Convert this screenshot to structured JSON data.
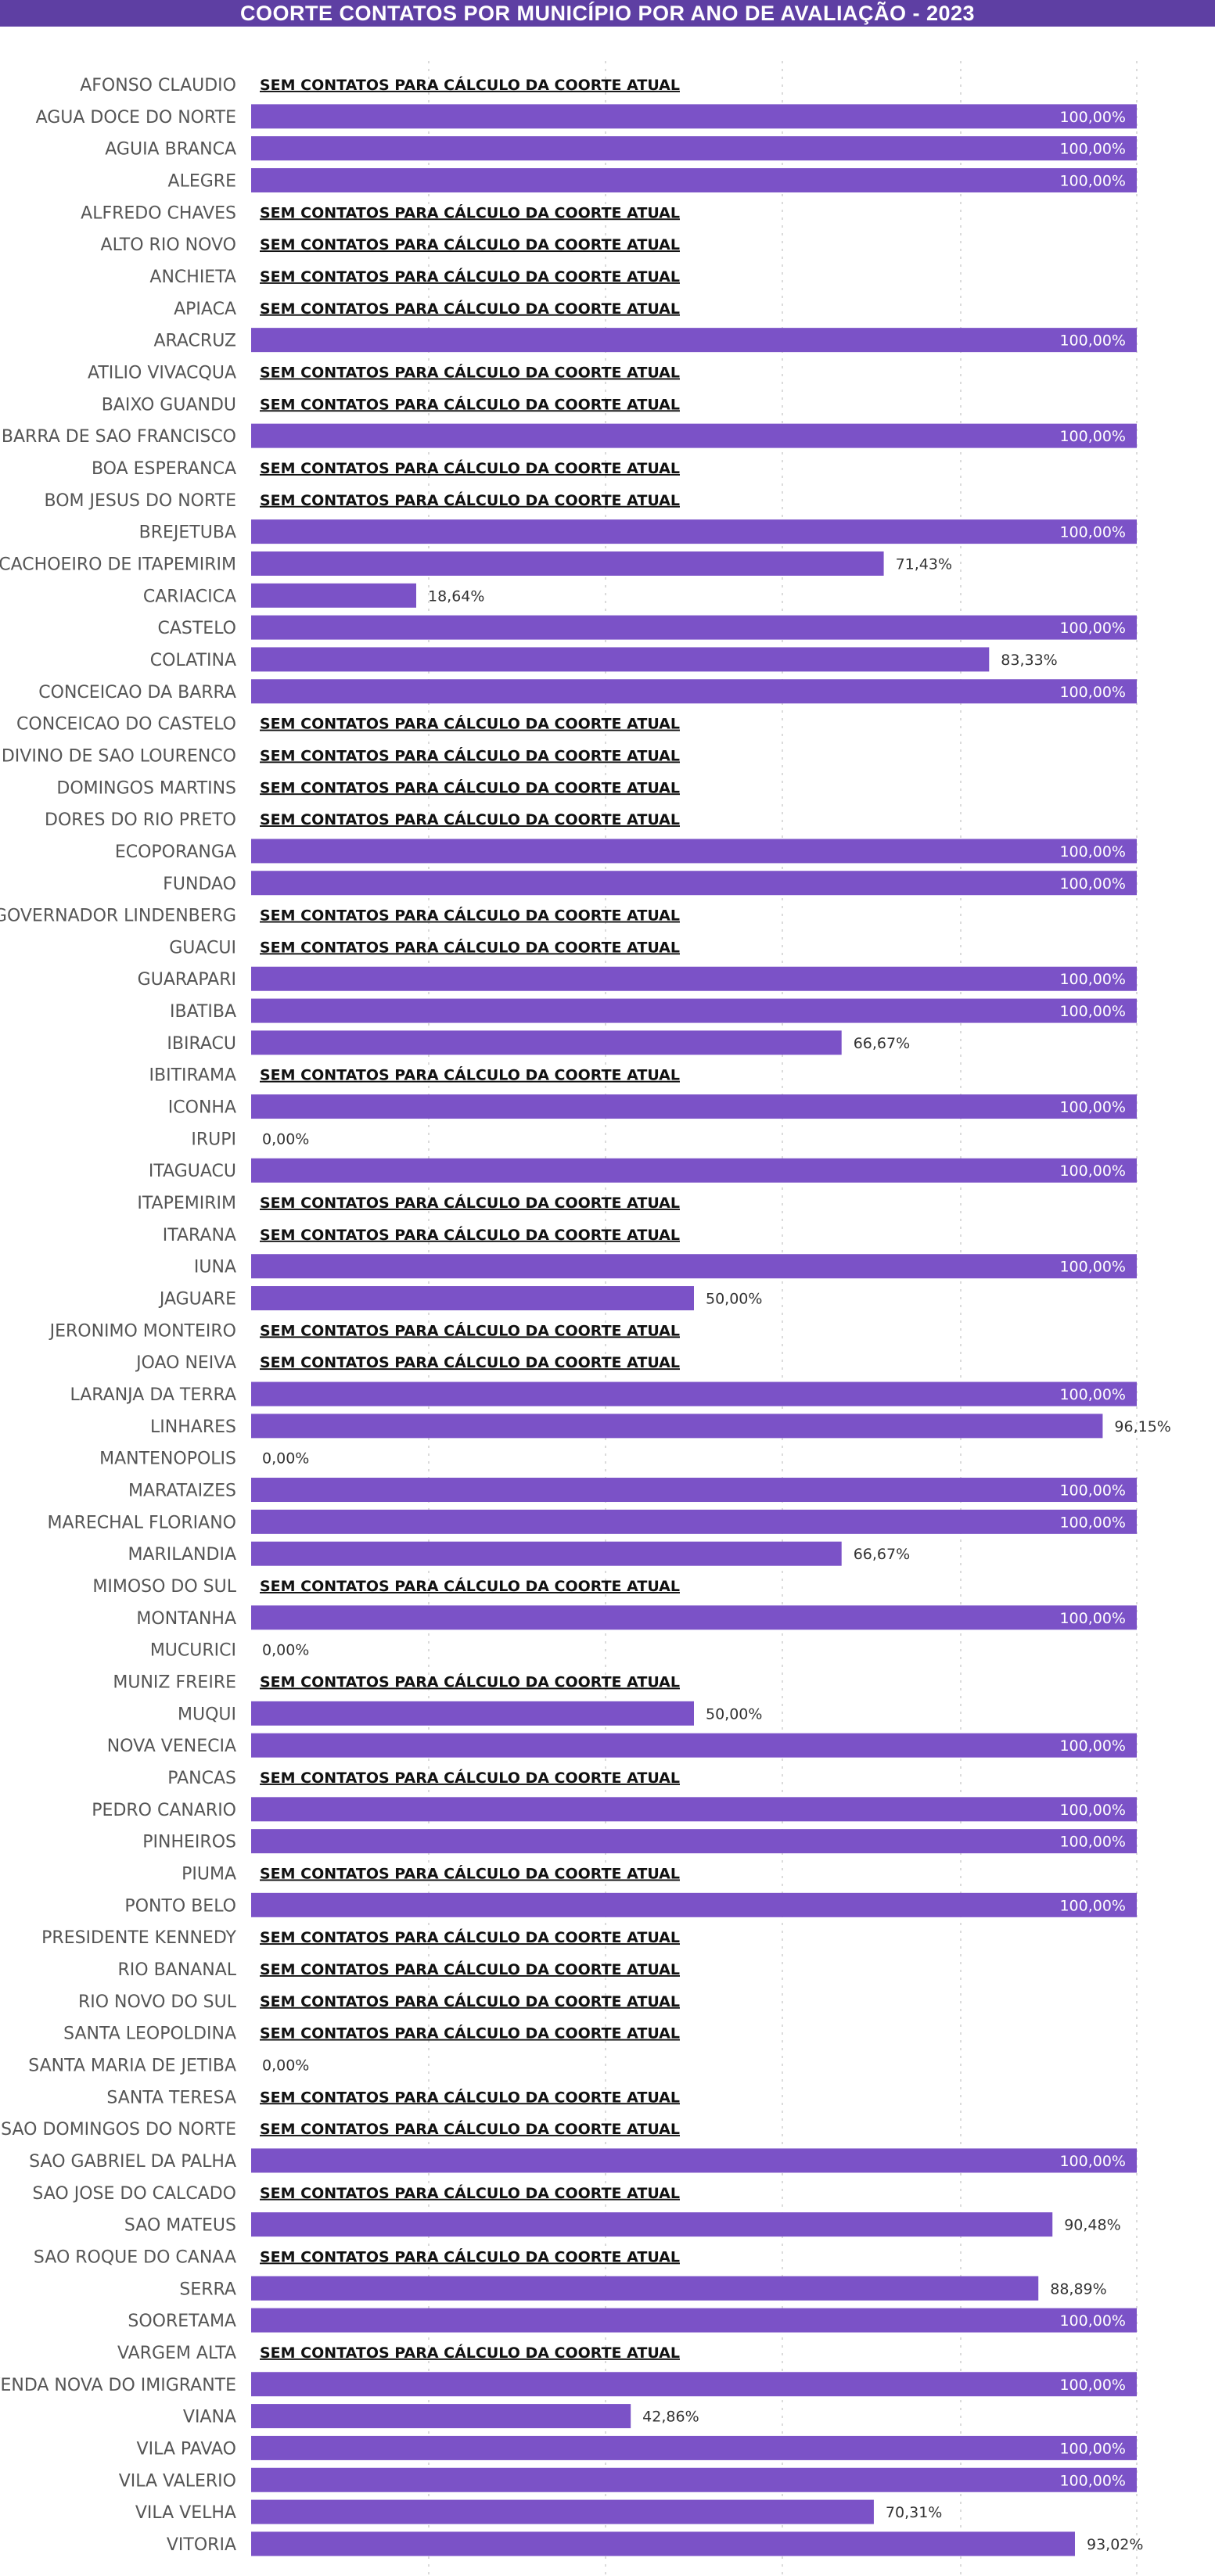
{
  "title": "COORTE CONTATOS POR MUNICÍPIO POR ANO DE AVALIAÇÃO - 2023",
  "no_data_text": "SEM CONTATOS PARA CÁLCULO DA COORTE ATUAL",
  "colors": {
    "bar": "#7b52c7",
    "header": "#5e3fa3",
    "label_inside": "#ffffff",
    "label_outside": "#333333"
  },
  "chart_data": {
    "type": "bar",
    "orientation": "horizontal",
    "xlim": [
      0,
      100
    ],
    "value_format": "percent_2dp_comma",
    "grid": true,
    "categories": [
      "AFONSO CLAUDIO",
      "AGUA DOCE DO NORTE",
      "AGUIA BRANCA",
      "ALEGRE",
      "ALFREDO CHAVES",
      "ALTO RIO NOVO",
      "ANCHIETA",
      "APIACA",
      "ARACRUZ",
      "ATILIO VIVACQUA",
      "BAIXO GUANDU",
      "BARRA DE SAO FRANCISCO",
      "BOA ESPERANCA",
      "BOM JESUS DO NORTE",
      "BREJETUBA",
      "CACHOEIRO DE ITAPEMIRIM",
      "CARIACICA",
      "CASTELO",
      "COLATINA",
      "CONCEICAO DA BARRA",
      "CONCEICAO DO CASTELO",
      "DIVINO DE SAO LOURENCO",
      "DOMINGOS MARTINS",
      "DORES DO RIO PRETO",
      "ECOPORANGA",
      "FUNDAO",
      "GOVERNADOR LINDENBERG",
      "GUACUI",
      "GUARAPARI",
      "IBATIBA",
      "IBIRACU",
      "IBITIRAMA",
      "ICONHA",
      "IRUPI",
      "ITAGUACU",
      "ITAPEMIRIM",
      "ITARANA",
      "IUNA",
      "JAGUARE",
      "JERONIMO MONTEIRO",
      "JOAO NEIVA",
      "LARANJA DA TERRA",
      "LINHARES",
      "MANTENOPOLIS",
      "MARATAIZES",
      "MARECHAL FLORIANO",
      "MARILANDIA",
      "MIMOSO DO SUL",
      "MONTANHA",
      "MUCURICI",
      "MUNIZ FREIRE",
      "MUQUI",
      "NOVA VENECIA",
      "PANCAS",
      "PEDRO CANARIO",
      "PINHEIROS",
      "PIUMA",
      "PONTO BELO",
      "PRESIDENTE KENNEDY",
      "RIO BANANAL",
      "RIO NOVO DO SUL",
      "SANTA LEOPOLDINA",
      "SANTA MARIA DE JETIBA",
      "SANTA TERESA",
      "SAO DOMINGOS DO NORTE",
      "SAO GABRIEL DA PALHA",
      "SAO JOSE DO CALCADO",
      "SAO MATEUS",
      "SAO ROQUE DO CANAA",
      "SERRA",
      "SOORETAMA",
      "VARGEM ALTA",
      "VENDA NOVA DO IMIGRANTE",
      "VIANA",
      "VILA PAVAO",
      "VILA VALERIO",
      "VILA VELHA",
      "VITORIA"
    ],
    "values": [
      null,
      100,
      100,
      100,
      null,
      null,
      null,
      null,
      100,
      null,
      null,
      100,
      null,
      null,
      100,
      71.43,
      18.64,
      100,
      83.33,
      100,
      null,
      null,
      null,
      null,
      100,
      100,
      null,
      null,
      100,
      100,
      66.67,
      null,
      100,
      0,
      100,
      null,
      null,
      100,
      50,
      null,
      null,
      100,
      96.15,
      0,
      100,
      100,
      66.67,
      null,
      100,
      0,
      null,
      50,
      100,
      null,
      100,
      100,
      null,
      100,
      null,
      null,
      null,
      null,
      0,
      null,
      null,
      100,
      null,
      90.48,
      null,
      88.89,
      100,
      null,
      100,
      42.86,
      100,
      100,
      70.31,
      93.02
    ]
  }
}
